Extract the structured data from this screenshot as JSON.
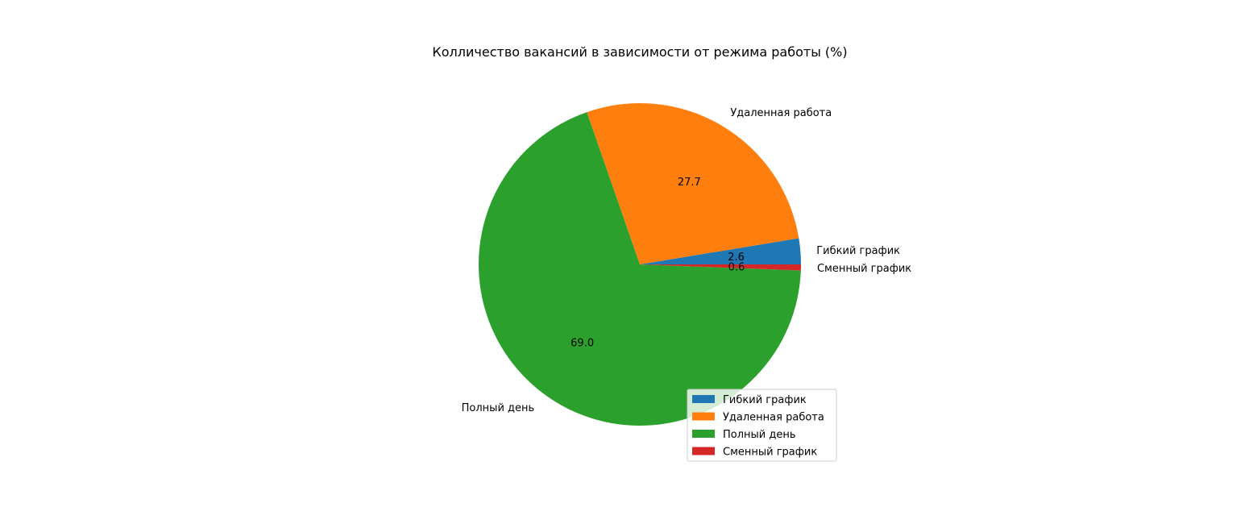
{
  "chart_data": {
    "type": "pie",
    "title": "Колличество вакансий в зависимости от режима работы (%)",
    "slices": [
      {
        "label": "Гибкий график",
        "value": 2.6,
        "pct_label": "2.6",
        "color": "#1f77b4"
      },
      {
        "label": "Удаленная работа",
        "value": 27.7,
        "pct_label": "27.7",
        "color": "#ff7f0e"
      },
      {
        "label": "Полный день",
        "value": 69.0,
        "pct_label": "69.0",
        "color": "#2ca02c"
      },
      {
        "label": "Сменный график",
        "value": 0.6,
        "pct_label": "0.6",
        "color": "#d62728"
      }
    ],
    "start_angle_deg": 0,
    "direction": "counterclockwise",
    "legend_position": "lower-right"
  }
}
